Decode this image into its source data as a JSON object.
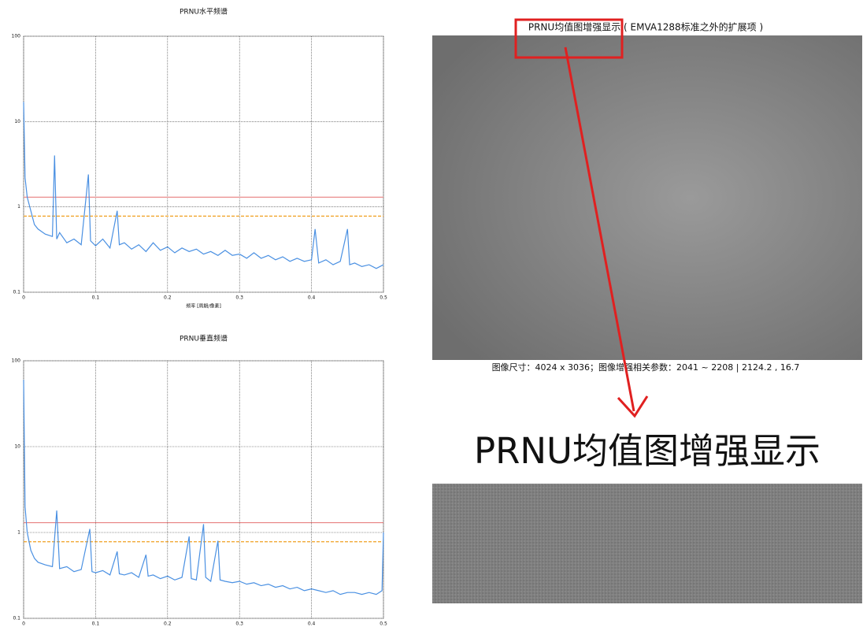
{
  "chart_data": [
    {
      "type": "line",
      "title": "PRNU水平频谱",
      "xlabel": "频率 [周期/像素]",
      "log_y": true,
      "grid": true,
      "color": "#4a90e2",
      "xlim": [
        0,
        0.5
      ],
      "xticks": [
        0,
        0.1,
        0.2,
        0.3,
        0.4,
        0.5
      ],
      "ylim": [
        0.1,
        100
      ],
      "yticks": [
        0.1,
        1,
        10,
        100
      ],
      "reference_lines": [
        {
          "value": 1.3,
          "color": "#e88080",
          "style": "solid"
        },
        {
          "value": 0.78,
          "color": "#f0a020",
          "style": "dashed"
        }
      ],
      "x": [
        0,
        0.002,
        0.005,
        0.01,
        0.015,
        0.02,
        0.03,
        0.04,
        0.043,
        0.046,
        0.05,
        0.06,
        0.07,
        0.08,
        0.09,
        0.093,
        0.1,
        0.11,
        0.12,
        0.13,
        0.133,
        0.14,
        0.15,
        0.16,
        0.17,
        0.18,
        0.19,
        0.2,
        0.21,
        0.22,
        0.23,
        0.24,
        0.25,
        0.26,
        0.27,
        0.28,
        0.29,
        0.3,
        0.31,
        0.32,
        0.33,
        0.34,
        0.35,
        0.36,
        0.37,
        0.38,
        0.39,
        0.4,
        0.405,
        0.41,
        0.42,
        0.43,
        0.44,
        0.45,
        0.453,
        0.46,
        0.47,
        0.48,
        0.49,
        0.5
      ],
      "values": [
        17,
        2.2,
        1.3,
        0.9,
        0.62,
        0.55,
        0.48,
        0.45,
        4.0,
        0.42,
        0.5,
        0.38,
        0.42,
        0.36,
        2.4,
        0.4,
        0.35,
        0.42,
        0.33,
        0.9,
        0.36,
        0.38,
        0.32,
        0.36,
        0.3,
        0.38,
        0.31,
        0.34,
        0.29,
        0.33,
        0.3,
        0.32,
        0.28,
        0.3,
        0.27,
        0.31,
        0.27,
        0.28,
        0.25,
        0.29,
        0.25,
        0.27,
        0.24,
        0.26,
        0.23,
        0.25,
        0.23,
        0.24,
        0.55,
        0.22,
        0.24,
        0.21,
        0.23,
        0.55,
        0.21,
        0.22,
        0.2,
        0.21,
        0.19,
        0.21
      ]
    },
    {
      "type": "line",
      "title": "PRNU垂直频谱",
      "log_y": true,
      "grid": true,
      "color": "#4a90e2",
      "xlim": [
        0,
        0.5
      ],
      "xticks": [
        0,
        0.1,
        0.2,
        0.3,
        0.4,
        0.5
      ],
      "ylim": [
        0.1,
        100
      ],
      "yticks": [
        0.1,
        1,
        10,
        100
      ],
      "reference_lines": [
        {
          "value": 1.3,
          "color": "#e88080",
          "style": "solid"
        },
        {
          "value": 0.78,
          "color": "#f0a020",
          "style": "dashed"
        }
      ],
      "x": [
        0,
        0.002,
        0.005,
        0.01,
        0.015,
        0.02,
        0.03,
        0.04,
        0.046,
        0.05,
        0.06,
        0.07,
        0.08,
        0.092,
        0.095,
        0.1,
        0.11,
        0.12,
        0.13,
        0.133,
        0.14,
        0.15,
        0.16,
        0.17,
        0.173,
        0.18,
        0.19,
        0.2,
        0.21,
        0.22,
        0.23,
        0.233,
        0.24,
        0.25,
        0.253,
        0.26,
        0.27,
        0.273,
        0.28,
        0.29,
        0.3,
        0.31,
        0.32,
        0.33,
        0.34,
        0.35,
        0.36,
        0.37,
        0.38,
        0.39,
        0.4,
        0.41,
        0.42,
        0.43,
        0.44,
        0.45,
        0.46,
        0.47,
        0.48,
        0.49,
        0.498,
        0.5
      ],
      "values": [
        60,
        2.0,
        1.0,
        0.62,
        0.5,
        0.45,
        0.42,
        0.4,
        1.8,
        0.38,
        0.4,
        0.35,
        0.37,
        1.1,
        0.35,
        0.34,
        0.36,
        0.32,
        0.6,
        0.33,
        0.32,
        0.34,
        0.3,
        0.55,
        0.31,
        0.32,
        0.29,
        0.31,
        0.28,
        0.3,
        0.9,
        0.29,
        0.28,
        1.25,
        0.3,
        0.27,
        0.8,
        0.28,
        0.27,
        0.26,
        0.27,
        0.25,
        0.26,
        0.24,
        0.25,
        0.23,
        0.24,
        0.22,
        0.23,
        0.21,
        0.22,
        0.21,
        0.2,
        0.21,
        0.19,
        0.2,
        0.2,
        0.19,
        0.2,
        0.19,
        0.21,
        1.0
      ]
    }
  ],
  "image_panel": {
    "title": "PRNU均值图增强显示 ( EMVA1288标准之外的扩展项 )",
    "caption": "图像尺寸：4024 x 3036；图像增强相关参数：2041 ~ 2208 | 2124.2 , 16.7",
    "zoom_title": "PRNU均值图增强显示"
  }
}
